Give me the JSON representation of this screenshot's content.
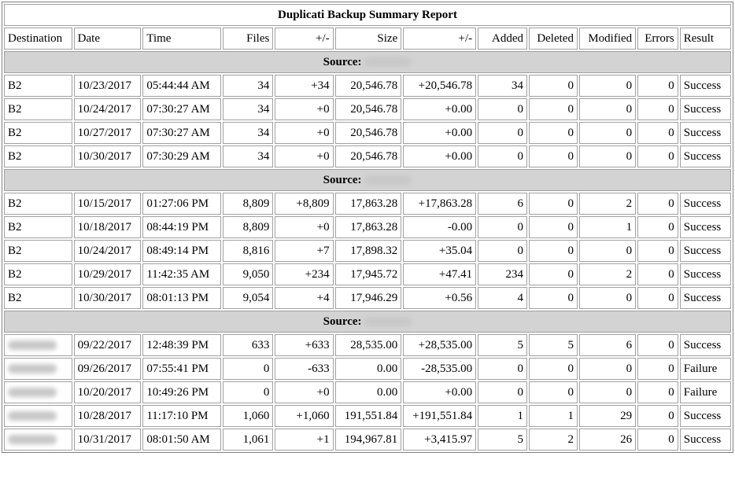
{
  "report": {
    "title": "Duplicati Backup Summary Report",
    "columns": [
      "Destination",
      "Date",
      "Time",
      "Files",
      "+/-",
      "Size",
      "+/-",
      "Added",
      "Deleted",
      "Modified",
      "Errors",
      "Result"
    ],
    "source_label": "Source:",
    "header_bg": "#d3d3d3",
    "groups": [
      {
        "source_name": "",
        "rows": [
          {
            "destination": "B2",
            "date": "10/23/2017",
            "time": "05:44:44 AM",
            "files": "34",
            "files_delta": "+34",
            "size": "20,546.78",
            "size_delta": "+20,546.78",
            "added": "34",
            "deleted": "0",
            "modified": "0",
            "errors": "0",
            "result": "Success"
          },
          {
            "destination": "B2",
            "date": "10/24/2017",
            "time": "07:30:27 AM",
            "files": "34",
            "files_delta": "+0",
            "size": "20,546.78",
            "size_delta": "+0.00",
            "added": "0",
            "deleted": "0",
            "modified": "0",
            "errors": "0",
            "result": "Success"
          },
          {
            "destination": "B2",
            "date": "10/27/2017",
            "time": "07:30:27 AM",
            "files": "34",
            "files_delta": "+0",
            "size": "20,546.78",
            "size_delta": "+0.00",
            "added": "0",
            "deleted": "0",
            "modified": "0",
            "errors": "0",
            "result": "Success"
          },
          {
            "destination": "B2",
            "date": "10/30/2017",
            "time": "07:30:29 AM",
            "files": "34",
            "files_delta": "+0",
            "size": "20,546.78",
            "size_delta": "+0.00",
            "added": "0",
            "deleted": "0",
            "modified": "0",
            "errors": "0",
            "result": "Success"
          }
        ]
      },
      {
        "source_name": "",
        "rows": [
          {
            "destination": "B2",
            "date": "10/15/2017",
            "time": "01:27:06 PM",
            "files": "8,809",
            "files_delta": "+8,809",
            "size": "17,863.28",
            "size_delta": "+17,863.28",
            "added": "6",
            "deleted": "0",
            "modified": "2",
            "errors": "0",
            "result": "Success"
          },
          {
            "destination": "B2",
            "date": "10/18/2017",
            "time": "08:44:19 PM",
            "files": "8,809",
            "files_delta": "+0",
            "size": "17,863.28",
            "size_delta": "-0.00",
            "added": "0",
            "deleted": "0",
            "modified": "1",
            "errors": "0",
            "result": "Success"
          },
          {
            "destination": "B2",
            "date": "10/24/2017",
            "time": "08:49:14 PM",
            "files": "8,816",
            "files_delta": "+7",
            "size": "17,898.32",
            "size_delta": "+35.04",
            "added": "0",
            "deleted": "0",
            "modified": "0",
            "errors": "0",
            "result": "Success"
          },
          {
            "destination": "B2",
            "date": "10/29/2017",
            "time": "11:42:35 AM",
            "files": "9,050",
            "files_delta": "+234",
            "size": "17,945.72",
            "size_delta": "+47.41",
            "added": "234",
            "deleted": "0",
            "modified": "2",
            "errors": "0",
            "result": "Success"
          },
          {
            "destination": "B2",
            "date": "10/30/2017",
            "time": "08:01:13 PM",
            "files": "9,054",
            "files_delta": "+4",
            "size": "17,946.29",
            "size_delta": "+0.56",
            "added": "4",
            "deleted": "0",
            "modified": "0",
            "errors": "0",
            "result": "Success"
          }
        ]
      },
      {
        "source_name": "",
        "rows": [
          {
            "destination": "",
            "date": "09/22/2017",
            "time": "12:48:39 PM",
            "files": "633",
            "files_delta": "+633",
            "size": "28,535.00",
            "size_delta": "+28,535.00",
            "added": "5",
            "deleted": "5",
            "modified": "6",
            "errors": "0",
            "result": "Success"
          },
          {
            "destination": "",
            "date": "09/26/2017",
            "time": "07:55:41 PM",
            "files": "0",
            "files_delta": "-633",
            "size": "0.00",
            "size_delta": "-28,535.00",
            "added": "0",
            "deleted": "0",
            "modified": "0",
            "errors": "0",
            "result": "Failure"
          },
          {
            "destination": "",
            "date": "10/20/2017",
            "time": "10:49:26 PM",
            "files": "0",
            "files_delta": "+0",
            "size": "0.00",
            "size_delta": "+0.00",
            "added": "0",
            "deleted": "0",
            "modified": "0",
            "errors": "0",
            "result": "Failure"
          },
          {
            "destination": "",
            "date": "10/28/2017",
            "time": "11:17:10 PM",
            "files": "1,060",
            "files_delta": "+1,060",
            "size": "191,551.84",
            "size_delta": "+191,551.84",
            "added": "1",
            "deleted": "1",
            "modified": "29",
            "errors": "0",
            "result": "Success"
          },
          {
            "destination": "",
            "date": "10/31/2017",
            "time": "08:01:50 AM",
            "files": "1,061",
            "files_delta": "+1",
            "size": "194,967.81",
            "size_delta": "+3,415.97",
            "added": "5",
            "deleted": "2",
            "modified": "26",
            "errors": "0",
            "result": "Success"
          }
        ]
      }
    ]
  }
}
